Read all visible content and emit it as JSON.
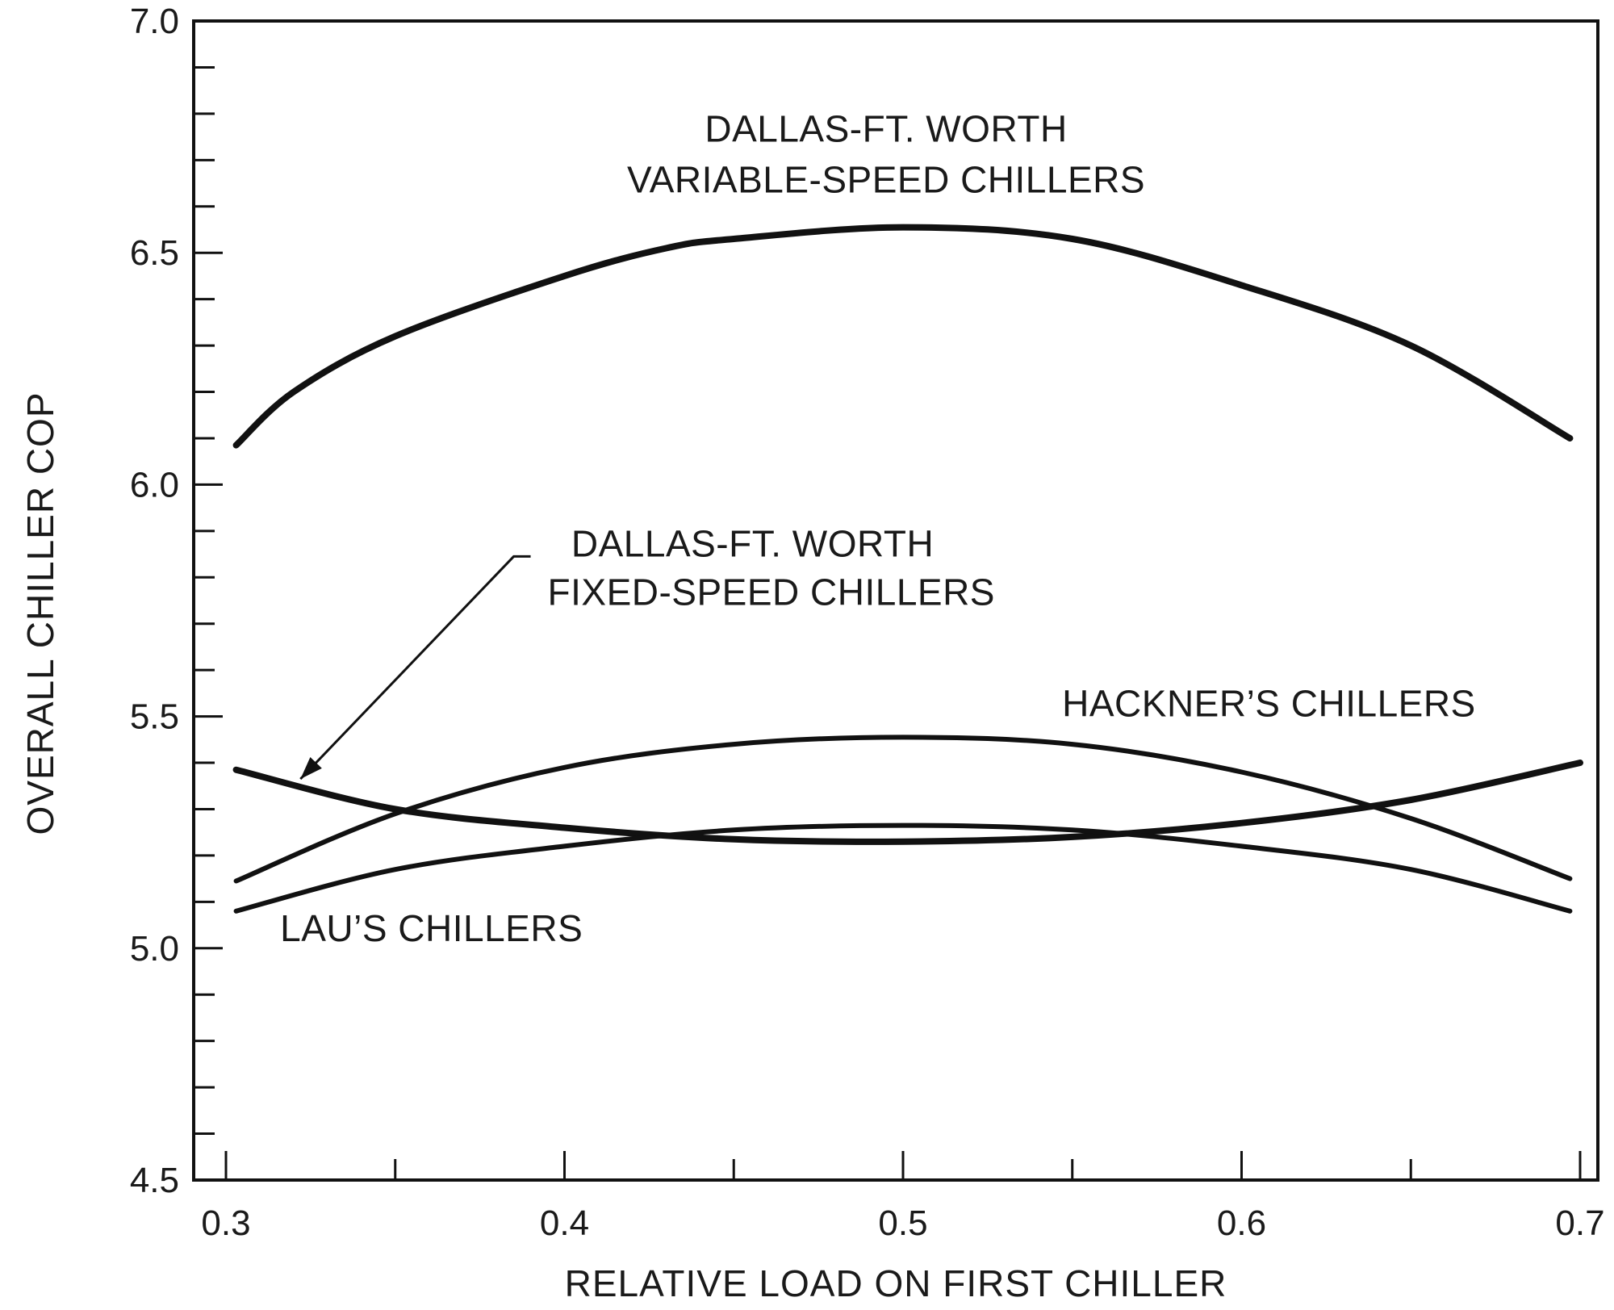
{
  "chart_data": {
    "type": "line",
    "xlabel": "RELATIVE LOAD ON FIRST CHILLER",
    "ylabel": "OVERALL CHILLER COP",
    "xlim": [
      0.3,
      0.7
    ],
    "ylim": [
      4.5,
      7.0
    ],
    "x_ticks": [
      {
        "value": 0.3,
        "label": "0.3"
      },
      {
        "value": 0.4,
        "label": "0.4"
      },
      {
        "value": 0.5,
        "label": "0.5"
      },
      {
        "value": 0.6,
        "label": "0.6"
      },
      {
        "value": 0.7,
        "label": "0.7"
      }
    ],
    "x_minor_ticks": [
      0.35,
      0.45,
      0.55,
      0.65
    ],
    "y_ticks": [
      {
        "value": 4.5,
        "label": "4.5"
      },
      {
        "value": 5.0,
        "label": "5.0"
      },
      {
        "value": 5.5,
        "label": "5.5"
      },
      {
        "value": 6.0,
        "label": "6.0"
      },
      {
        "value": 6.5,
        "label": "6.5"
      },
      {
        "value": 7.0,
        "label": "7.0"
      }
    ],
    "y_minor_step": 0.1,
    "grid": false,
    "series": [
      {
        "name_lines": [
          "DALLAS-FT. WORTH",
          "VARIABLE-SPEED CHILLERS"
        ],
        "x": [
          0.303,
          0.32,
          0.35,
          0.4,
          0.43,
          0.45,
          0.5,
          0.55,
          0.6,
          0.65,
          0.697
        ],
        "y": [
          6.085,
          6.2,
          6.32,
          6.45,
          6.51,
          6.53,
          6.555,
          6.53,
          6.43,
          6.3,
          6.1
        ],
        "width": 8
      },
      {
        "name_lines": [
          "DALLAS-FT. WORTH",
          "FIXED-SPEED CHILLERS"
        ],
        "x": [
          0.303,
          0.35,
          0.4,
          0.45,
          0.5,
          0.55,
          0.6,
          0.65,
          0.7
        ],
        "y": [
          5.385,
          5.3,
          5.26,
          5.235,
          5.23,
          5.24,
          5.27,
          5.32,
          5.4
        ],
        "width": 8
      },
      {
        "name_lines": [
          "HACKNER’S CHILLERS"
        ],
        "x": [
          0.303,
          0.35,
          0.4,
          0.45,
          0.5,
          0.55,
          0.6,
          0.65,
          0.697
        ],
        "y": [
          5.145,
          5.29,
          5.39,
          5.44,
          5.455,
          5.44,
          5.38,
          5.28,
          5.15
        ],
        "width": 6
      },
      {
        "name_lines": [
          "LAU’S CHILLERS"
        ],
        "x": [
          0.303,
          0.35,
          0.4,
          0.45,
          0.5,
          0.55,
          0.6,
          0.65,
          0.697
        ],
        "y": [
          5.08,
          5.17,
          5.22,
          5.255,
          5.265,
          5.255,
          5.22,
          5.17,
          5.08
        ],
        "width": 6
      }
    ],
    "annotations": [
      {
        "series": 0,
        "lines": [
          "DALLAS-FT. WORTH",
          "VARIABLE-SPEED CHILLERS"
        ],
        "x": 0.495,
        "y": [
          6.74,
          6.63
        ],
        "anchor": "middle"
      },
      {
        "series": 1,
        "lines": [
          "DALLAS-FT. WORTH",
          "FIXED-SPEED CHILLERS"
        ],
        "x": [
          0.402,
          0.395
        ],
        "y": [
          5.845,
          5.74
        ],
        "anchor": "start",
        "arrow": {
          "from": [
            0.39,
            5.845
          ],
          "elbow": [
            0.385,
            5.845
          ],
          "to": [
            0.322,
            5.365
          ]
        }
      },
      {
        "series": 2,
        "lines": [
          "HACKNER’S CHILLERS"
        ],
        "x": 0.547,
        "y": [
          5.5
        ],
        "anchor": "start"
      },
      {
        "series": 3,
        "lines": [
          "LAU’S CHILLERS"
        ],
        "x": 0.316,
        "y": [
          5.015
        ],
        "anchor": "start"
      }
    ]
  }
}
